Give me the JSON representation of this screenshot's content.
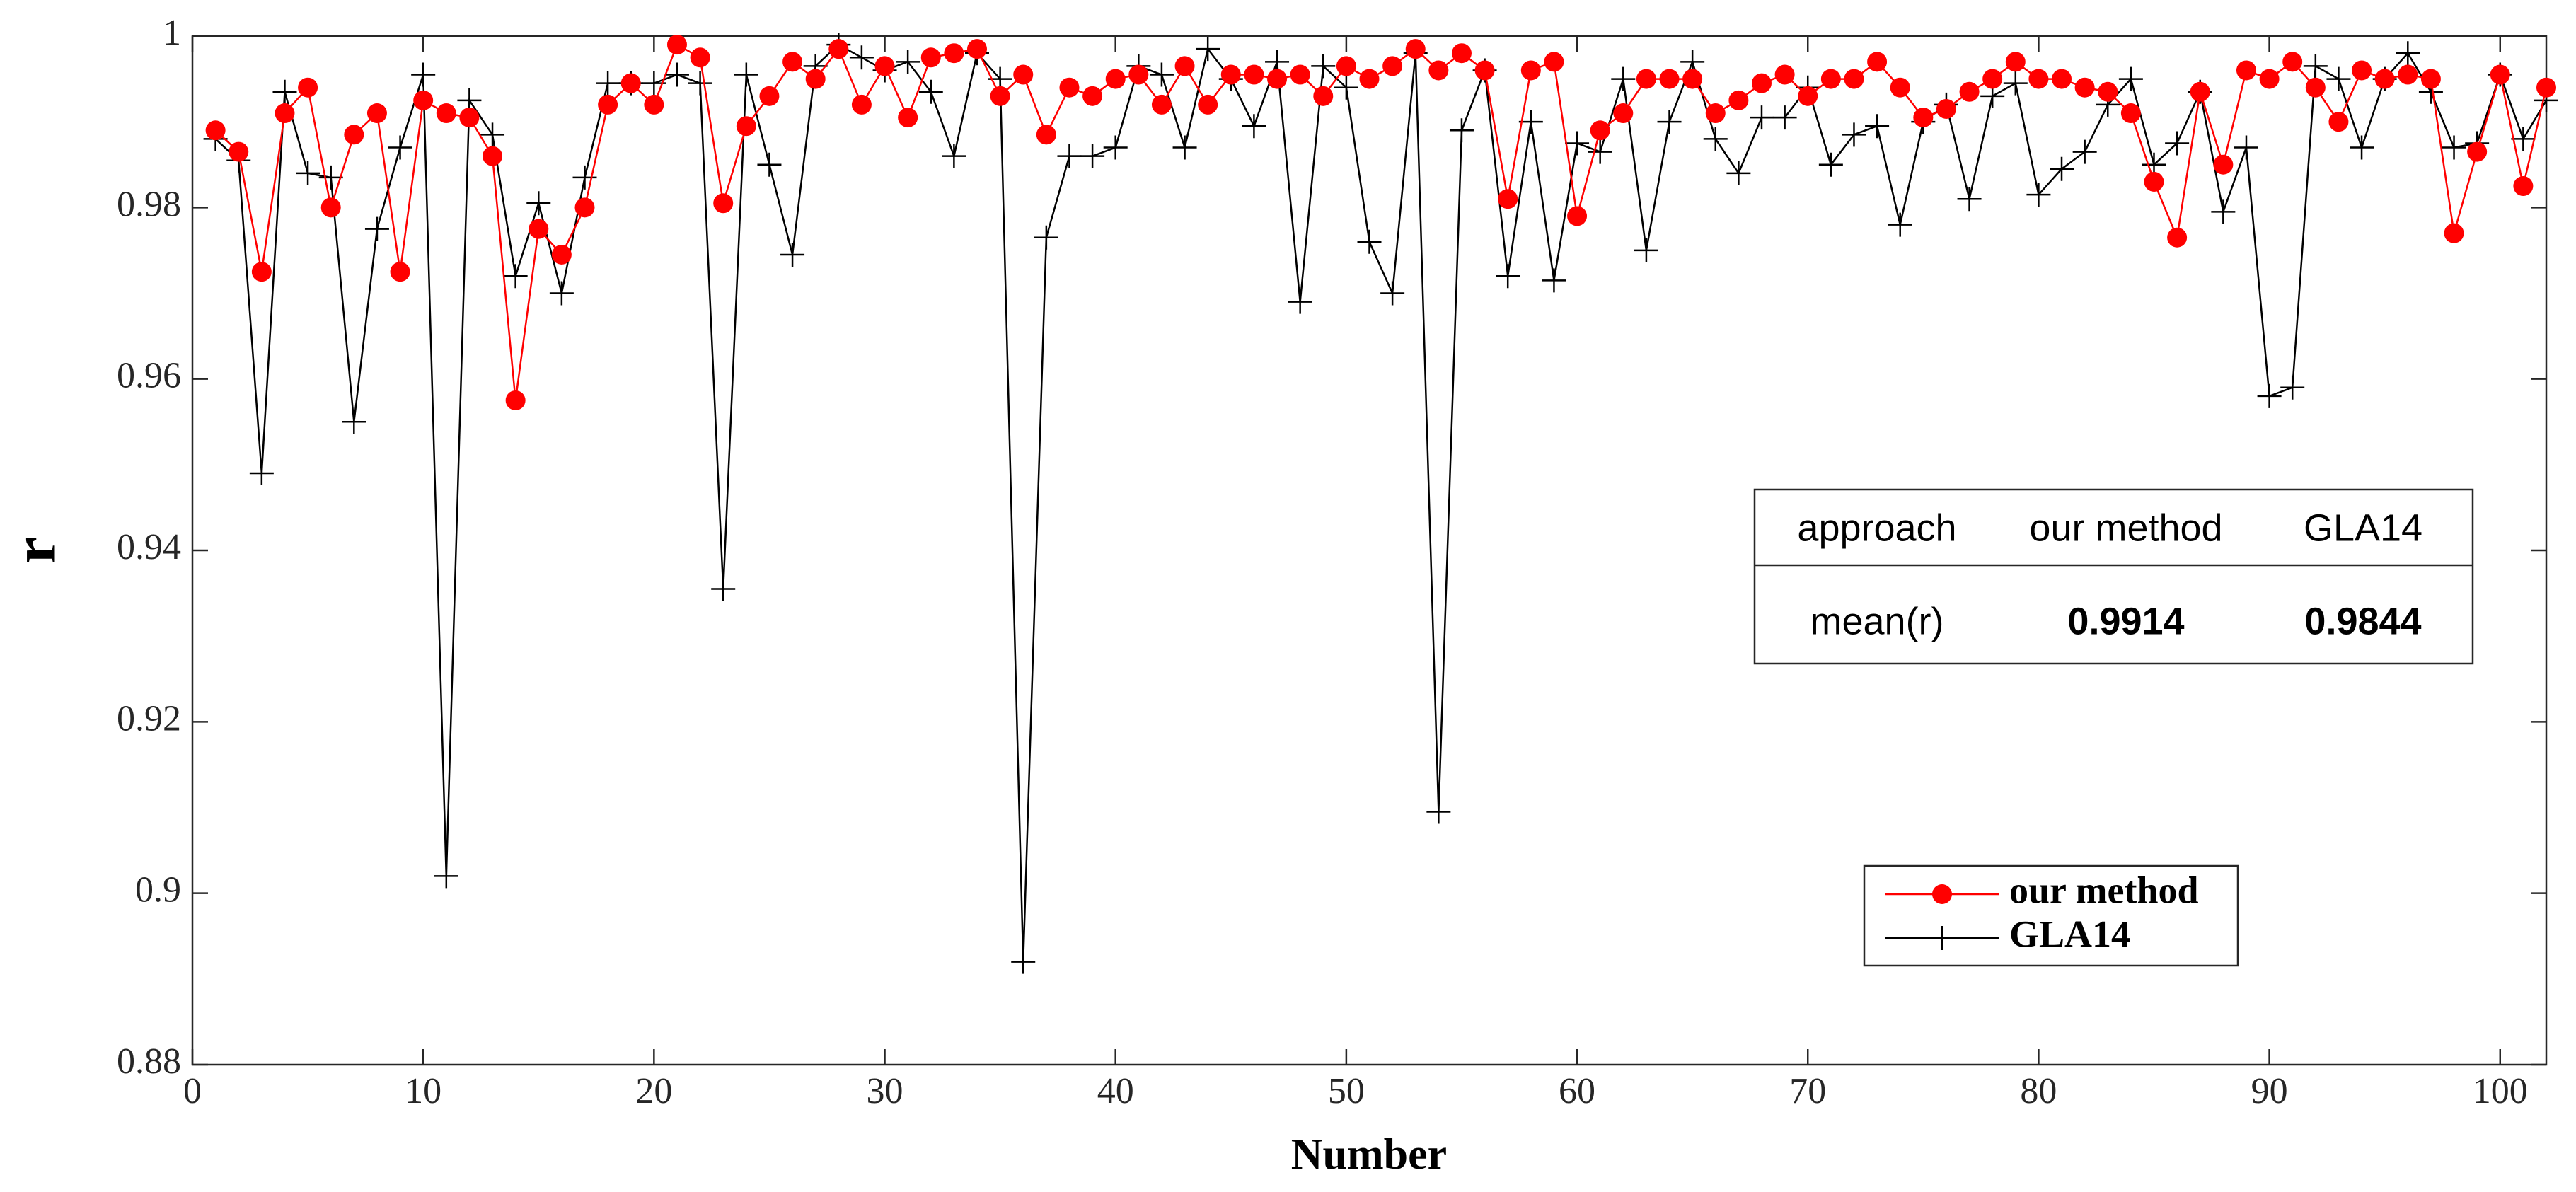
{
  "chart_data": {
    "type": "line",
    "xlabel": "Number",
    "ylabel": "r",
    "x": [
      1,
      2,
      3,
      4,
      5,
      6,
      7,
      8,
      9,
      10,
      11,
      12,
      13,
      14,
      15,
      16,
      17,
      18,
      19,
      20,
      21,
      22,
      23,
      24,
      25,
      26,
      27,
      28,
      29,
      30,
      31,
      32,
      33,
      34,
      35,
      36,
      37,
      38,
      39,
      40,
      41,
      42,
      43,
      44,
      45,
      46,
      47,
      48,
      49,
      50,
      51,
      52,
      53,
      54,
      55,
      56,
      57,
      58,
      59,
      60,
      61,
      62,
      63,
      64,
      65,
      66,
      67,
      68,
      69,
      70,
      71,
      72,
      73,
      74,
      75,
      76,
      77,
      78,
      79,
      80,
      81,
      82,
      83,
      84,
      85,
      86,
      87,
      88,
      89,
      90,
      91,
      92,
      93,
      94,
      95,
      96,
      97,
      98,
      99,
      100,
      101,
      102
    ],
    "series": [
      {
        "name": "our method",
        "color": "#ff0000",
        "marker": "circle",
        "values": [
          0.989,
          0.9865,
          0.9725,
          0.991,
          0.994,
          0.98,
          0.9885,
          0.991,
          0.9725,
          0.9925,
          0.991,
          0.9905,
          0.986,
          0.9575,
          0.9775,
          0.9745,
          0.98,
          0.992,
          0.9945,
          0.992,
          0.999,
          0.9975,
          0.9805,
          0.9895,
          0.993,
          0.997,
          0.995,
          0.9985,
          0.992,
          0.9965,
          0.9905,
          0.9975,
          0.998,
          0.9985,
          0.993,
          0.9955,
          0.9885,
          0.994,
          0.993,
          0.995,
          0.9955,
          0.992,
          0.9965,
          0.992,
          0.9955,
          0.9955,
          0.995,
          0.9955,
          0.993,
          0.9965,
          0.995,
          0.9965,
          0.9985,
          0.996,
          0.998,
          0.996,
          0.981,
          0.996,
          0.997,
          0.979,
          0.989,
          0.991,
          0.995,
          0.995,
          0.995,
          0.991,
          0.9925,
          0.9945,
          0.9955,
          0.993,
          0.995,
          0.995,
          0.997,
          0.994,
          0.9905,
          0.9915,
          0.9935,
          0.995,
          0.997,
          0.995,
          0.995,
          0.994,
          0.9935,
          0.991,
          0.983,
          0.9765,
          0.9935,
          0.985,
          0.996,
          0.995,
          0.997,
          0.994,
          0.99,
          0.996,
          0.995,
          0.9955,
          0.995,
          0.977,
          0.9865,
          0.9955,
          0.9825,
          0.994
        ]
      },
      {
        "name": "GLA14",
        "color": "#000000",
        "marker": "plus",
        "values": [
          0.988,
          0.9855,
          0.949,
          0.9935,
          0.984,
          0.9835,
          0.955,
          0.9775,
          0.987,
          0.9955,
          0.902,
          0.9925,
          0.9885,
          0.972,
          0.9805,
          0.97,
          0.9835,
          0.9945,
          0.9945,
          0.9945,
          0.9955,
          0.9945,
          0.9355,
          0.9955,
          0.985,
          0.9745,
          0.9965,
          0.999,
          0.9975,
          0.996,
          0.997,
          0.9935,
          0.986,
          0.998,
          0.995,
          0.892,
          0.9765,
          0.986,
          0.986,
          0.987,
          0.9965,
          0.9955,
          0.987,
          0.9985,
          0.995,
          0.9895,
          0.997,
          0.969,
          0.9965,
          0.994,
          0.976,
          0.97,
          0.998,
          0.9095,
          0.989,
          0.996,
          0.972,
          0.99,
          0.9715,
          0.9875,
          0.9865,
          0.995,
          0.975,
          0.99,
          0.997,
          0.988,
          0.984,
          0.9905,
          0.9905,
          0.994,
          0.985,
          0.9885,
          0.9895,
          0.978,
          0.99,
          0.992,
          0.981,
          0.993,
          0.9945,
          0.9815,
          0.9845,
          0.9865,
          0.992,
          0.995,
          0.985,
          0.9875,
          0.9935,
          0.9795,
          0.987,
          0.958,
          0.959,
          0.9965,
          0.995,
          0.987,
          0.995,
          0.998,
          0.9935,
          0.987,
          0.9875,
          0.9955,
          0.988,
          0.9925
        ]
      }
    ],
    "xlim": [
      0,
      102
    ],
    "xticks": [
      0,
      10,
      20,
      30,
      40,
      50,
      60,
      70,
      80,
      90,
      100
    ],
    "ylim": [
      0.88,
      1
    ],
    "yticks": [
      0.88,
      0.9,
      0.92,
      0.94,
      0.96,
      0.98,
      1
    ],
    "table": {
      "header": [
        "approach",
        "our method",
        "GLA14"
      ],
      "rows": [
        [
          "mean(r)",
          0.9914,
          0.9844
        ]
      ]
    }
  }
}
